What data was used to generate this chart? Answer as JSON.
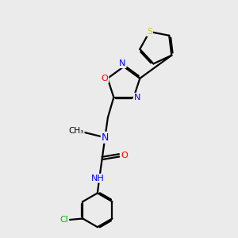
{
  "bg_color": "#ebebeb",
  "bond_color": "#000000",
  "N_color": "#0000ff",
  "O_color": "#ff0000",
  "S_color": "#cccc00",
  "Cl_color": "#00bb00",
  "H_color": "#808080",
  "linewidth": 1.6,
  "dbo": 0.055,
  "xlim": [
    0,
    10
  ],
  "ylim": [
    0,
    10
  ]
}
